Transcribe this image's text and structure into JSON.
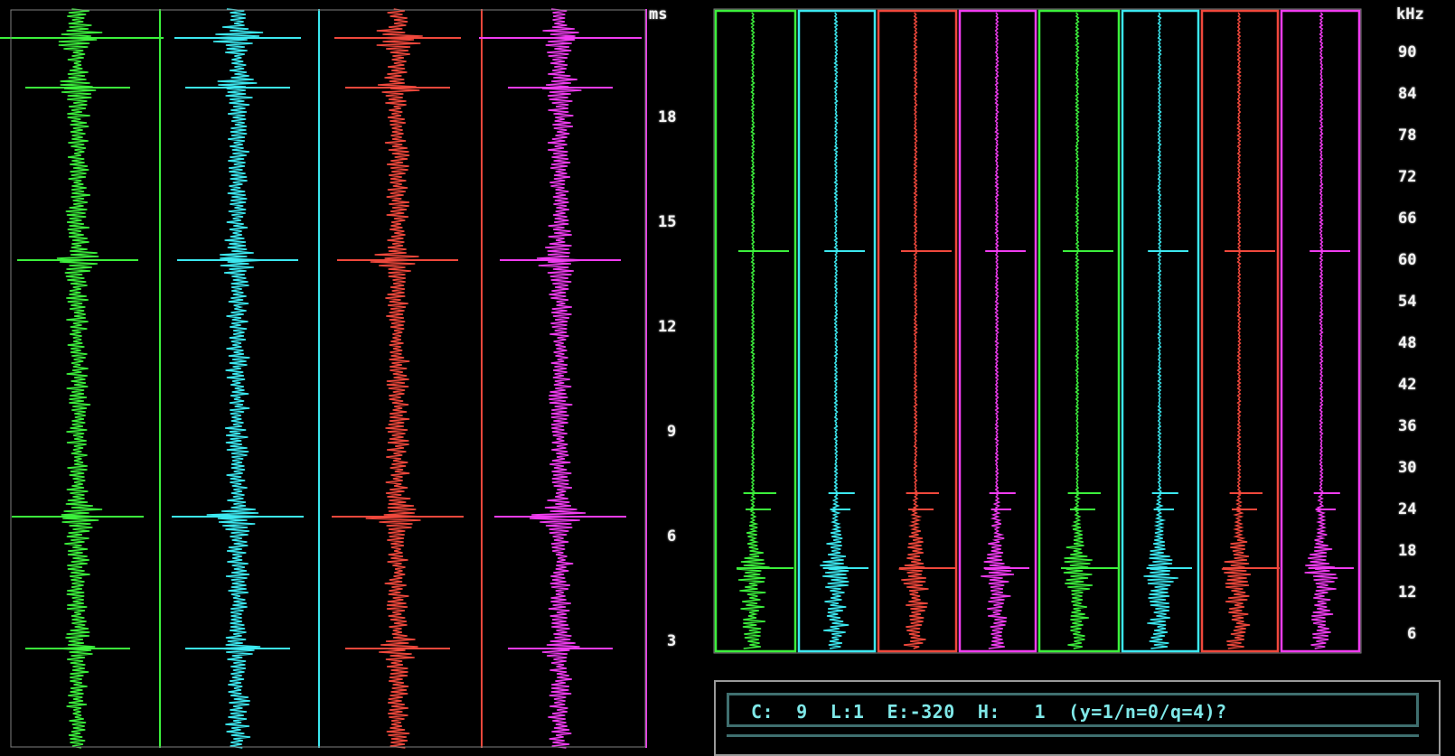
{
  "left_panel": {
    "unit_label": "ms",
    "ticks": [
      "18",
      "15",
      "12",
      "9",
      "6",
      "3"
    ],
    "channels": [
      {
        "name": "ch1",
        "color": "#3cf03c"
      },
      {
        "name": "ch2",
        "color": "#3ce8f0"
      },
      {
        "name": "ch3",
        "color": "#f0483c"
      },
      {
        "name": "ch4",
        "color": "#f03cf0"
      }
    ]
  },
  "right_panel": {
    "unit_label": "kHz",
    "ticks": [
      "90",
      "84",
      "78",
      "72",
      "66",
      "60",
      "54",
      "48",
      "42",
      "36",
      "30",
      "24",
      "18",
      "12",
      "6"
    ],
    "channels": [
      {
        "name": "ch1",
        "color": "#3cf03c"
      },
      {
        "name": "ch2",
        "color": "#3ce8f0"
      },
      {
        "name": "ch3",
        "color": "#f0483c"
      },
      {
        "name": "ch4",
        "color": "#f03cf0"
      },
      {
        "name": "ch5",
        "color": "#3cf03c"
      },
      {
        "name": "ch6",
        "color": "#3ce8f0"
      },
      {
        "name": "ch7",
        "color": "#f0483c"
      },
      {
        "name": "ch8",
        "color": "#f03cf0"
      }
    ]
  },
  "status": {
    "prompt": "C:  9  L:1  E:-320  H:   1  (y=1/n=0/q=4)?"
  }
}
